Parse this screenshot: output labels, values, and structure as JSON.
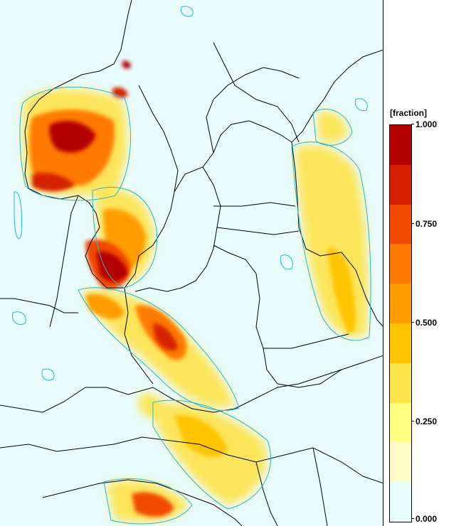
{
  "map": {
    "background_color": "#e8fcfc",
    "contour_color": "#2bb6c6",
    "border_color": "#000000"
  },
  "legend": {
    "title": "[fraction]",
    "ticks": [
      "1.000",
      "0.750",
      "0.500",
      "0.250",
      "0.000"
    ],
    "colors": [
      "#b30000",
      "#d42000",
      "#f24a00",
      "#ff7a00",
      "#ff9d00",
      "#ffc400",
      "#ffe34a",
      "#ffff80",
      "#fffcc6",
      "#e8fcfc"
    ]
  }
}
